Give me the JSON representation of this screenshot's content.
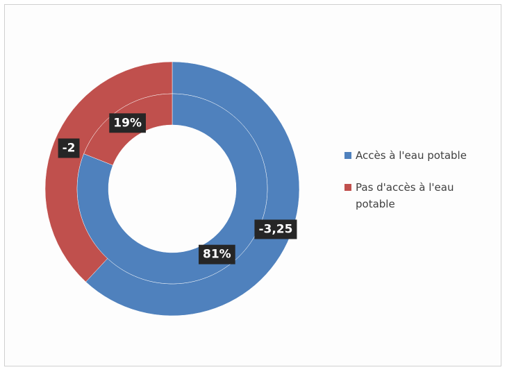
{
  "chart_data": {
    "type": "donut",
    "categories": [
      "Accès à l'eau potable",
      "Pas d'accès à l'eau potable"
    ],
    "colors": [
      "#4f81bd",
      "#c0504d"
    ],
    "series": [
      {
        "values": [
          -3.25,
          -2
        ],
        "value_labels": [
          "-3,25",
          "-2"
        ]
      },
      {
        "values": [
          81,
          19
        ],
        "value_labels": [
          "81%",
          "19%"
        ]
      }
    ]
  }
}
